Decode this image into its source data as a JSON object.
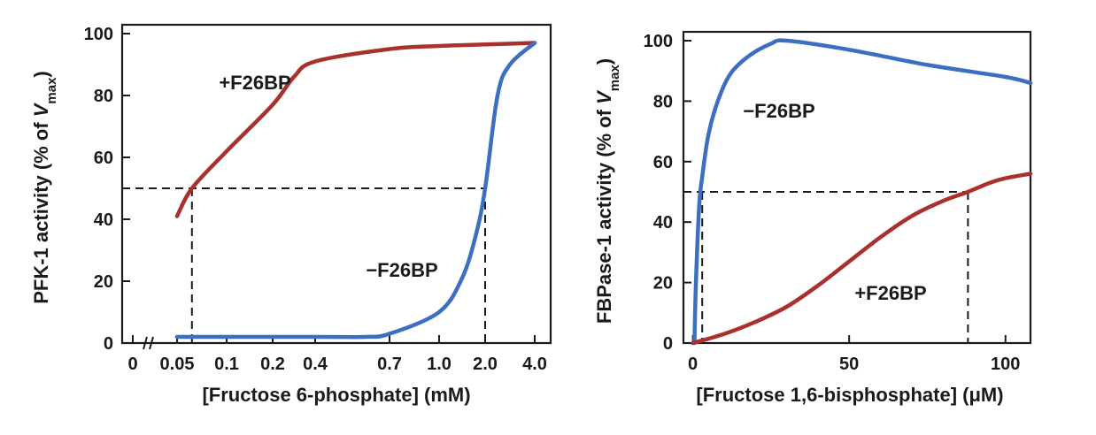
{
  "colors": {
    "plus_f26bp": "#a8312b",
    "minus_f26bp": "#3d6fc0",
    "ink": "#1a1a1a"
  },
  "chart_data": [
    {
      "type": "line",
      "title": "",
      "xlabel": "[Fructose 6-phosphate] (mM)",
      "ylabel": "PFK-1 activity (% of Vmax)",
      "ylabel_parts": {
        "main": "PFK-1 activity (% of ",
        "italic": "V",
        "sub": "max",
        "close": ")"
      },
      "x_axis_scale": "categorical (non-linear)",
      "x_ticks": [
        "0",
        "0.05",
        "0.1",
        "0.2",
        "0.4",
        "0.7",
        "1.0",
        "2.0",
        "4.0"
      ],
      "x_axis_break": "between 0 and 0.05",
      "ylim": [
        0,
        100
      ],
      "y_ticks": [
        0,
        20,
        40,
        60,
        80,
        100
      ],
      "grid": false,
      "series": [
        {
          "name": "+F26BP",
          "color_key": "plus_f26bp",
          "points": [
            [
              0.05,
              41
            ],
            [
              0.065,
              50
            ],
            [
              0.1,
              62
            ],
            [
              0.2,
              77
            ],
            [
              0.3,
              86
            ],
            [
              0.4,
              91
            ],
            [
              0.7,
              95
            ],
            [
              1.0,
              96
            ],
            [
              2.0,
              96.5
            ],
            [
              4.0,
              97
            ]
          ]
        },
        {
          "name": "−F26BP",
          "color_key": "minus_f26bp",
          "points": [
            [
              0.05,
              2
            ],
            [
              0.4,
              2
            ],
            [
              0.6,
              2
            ],
            [
              0.7,
              3
            ],
            [
              1.0,
              10
            ],
            [
              1.5,
              21
            ],
            [
              1.8,
              35
            ],
            [
              2.0,
              50
            ],
            [
              2.5,
              80
            ],
            [
              3.0,
              90
            ],
            [
              4.0,
              97
            ]
          ]
        }
      ],
      "guides": [
        {
          "y": 50,
          "x": [
            0.065,
            2.0
          ]
        }
      ]
    },
    {
      "type": "line",
      "title": "",
      "xlabel": "[Fructose 1,6-bisphosphate] (μM)",
      "ylabel": "FBPase-1 activity (% of Vmax)",
      "ylabel_parts": {
        "main": "FBPase-1 activity (% of ",
        "italic": "V",
        "sub": "max",
        "close": ")"
      },
      "xlim": [
        -3,
        108
      ],
      "x_ticks": [
        0,
        50,
        100
      ],
      "ylim": [
        0,
        100
      ],
      "y_ticks": [
        0,
        20,
        40,
        60,
        80,
        100
      ],
      "grid": false,
      "series": [
        {
          "name": "−F26BP",
          "color_key": "minus_f26bp",
          "points": [
            [
              0.5,
              0
            ],
            [
              1,
              20
            ],
            [
              2,
              45
            ],
            [
              3,
              55
            ],
            [
              5,
              69
            ],
            [
              8,
              80
            ],
            [
              12,
              89
            ],
            [
              18,
              95
            ],
            [
              25,
              99
            ],
            [
              30,
              100
            ],
            [
              50,
              97
            ],
            [
              75,
              92
            ],
            [
              100,
              88
            ],
            [
              108,
              86
            ]
          ]
        },
        {
          "name": "+F26BP",
          "color_key": "plus_f26bp",
          "points": [
            [
              0,
              0
            ],
            [
              10,
              3
            ],
            [
              20,
              7
            ],
            [
              30,
              12
            ],
            [
              40,
              19
            ],
            [
              50,
              27
            ],
            [
              60,
              35
            ],
            [
              70,
              42
            ],
            [
              80,
              47
            ],
            [
              88,
              50
            ],
            [
              95,
              53
            ],
            [
              100,
              54.5
            ],
            [
              108,
              56
            ]
          ]
        }
      ],
      "guides": [
        {
          "y": 50,
          "x": [
            3,
            88
          ]
        }
      ]
    }
  ]
}
